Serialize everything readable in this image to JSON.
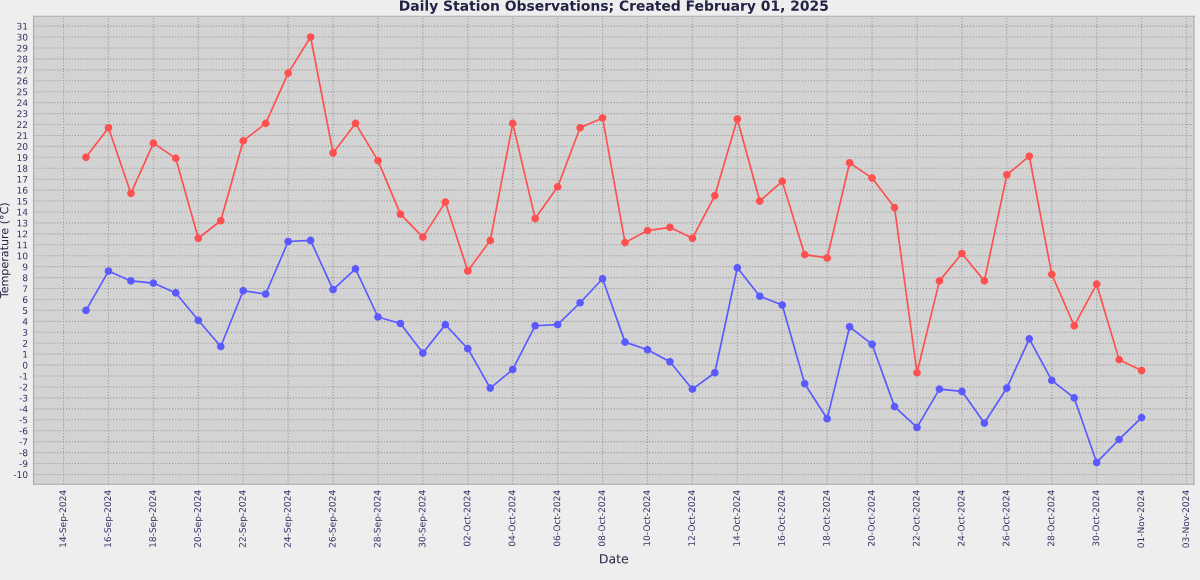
{
  "chart_data": {
    "type": "line",
    "title": "Daily Station Observations; Created February 01, 2025",
    "xlabel": "Date",
    "ylabel": "Temperature (°C)",
    "x": [
      "2024-09-15",
      "2024-09-16",
      "2024-09-17",
      "2024-09-18",
      "2024-09-19",
      "2024-09-20",
      "2024-09-21",
      "2024-09-22",
      "2024-09-23",
      "2024-09-24",
      "2024-09-25",
      "2024-09-26",
      "2024-09-27",
      "2024-09-28",
      "2024-09-29",
      "2024-09-30",
      "2024-10-01",
      "2024-10-02",
      "2024-10-03",
      "2024-10-04",
      "2024-10-05",
      "2024-10-06",
      "2024-10-07",
      "2024-10-08",
      "2024-10-09",
      "2024-10-10",
      "2024-10-11",
      "2024-10-12",
      "2024-10-13",
      "2024-10-14",
      "2024-10-15",
      "2024-10-16",
      "2024-10-17",
      "2024-10-18",
      "2024-10-19",
      "2024-10-20",
      "2024-10-21",
      "2024-10-22",
      "2024-10-23",
      "2024-10-24",
      "2024-10-25",
      "2024-10-26",
      "2024-10-27",
      "2024-10-28",
      "2024-10-29",
      "2024-10-30",
      "2024-10-31",
      "2024-11-01"
    ],
    "series": [
      {
        "color": "#ff5050",
        "values": [
          19.0,
          21.7,
          15.7,
          20.3,
          18.9,
          11.6,
          13.2,
          20.5,
          22.1,
          26.7,
          30.0,
          19.4,
          22.1,
          18.7,
          13.8,
          11.7,
          14.9,
          8.6,
          11.4,
          22.1,
          13.4,
          16.3,
          21.7,
          22.6,
          11.2,
          12.3,
          12.6,
          11.6,
          15.5,
          22.5,
          15.0,
          16.8,
          10.1,
          9.8,
          18.5,
          17.1,
          14.4,
          -0.7,
          7.7,
          10.2,
          7.7,
          17.4,
          19.1,
          8.3,
          3.6,
          7.4,
          0.5,
          -0.5
        ]
      },
      {
        "color": "#5a5aff",
        "values": [
          5.0,
          8.6,
          7.7,
          7.5,
          6.6,
          4.1,
          1.7,
          6.8,
          6.5,
          11.3,
          11.4,
          6.9,
          8.8,
          4.4,
          3.8,
          1.1,
          3.7,
          1.5,
          -2.1,
          -0.4,
          3.6,
          3.7,
          5.7,
          7.9,
          2.1,
          1.4,
          0.3,
          -2.2,
          -0.7,
          8.9,
          6.3,
          5.5,
          -1.7,
          -4.9,
          3.5,
          1.9,
          -3.8,
          -5.7,
          -2.2,
          -2.4,
          -5.3,
          -2.1,
          2.4,
          -1.4,
          -3.0,
          -8.9,
          -6.8,
          -4.8
        ]
      }
    ],
    "xlim": [
      "2024-09-12T16:00",
      "2024-11-03T08:00"
    ],
    "xticks": [
      {
        "value": "2024-09-14",
        "label": "14-Sep-2024"
      },
      {
        "value": "2024-09-16",
        "label": "16-Sep-2024"
      },
      {
        "value": "2024-09-18",
        "label": "18-Sep-2024"
      },
      {
        "value": "2024-09-20",
        "label": "20-Sep-2024"
      },
      {
        "value": "2024-09-22",
        "label": "22-Sep-2024"
      },
      {
        "value": "2024-09-24",
        "label": "24-Sep-2024"
      },
      {
        "value": "2024-09-26",
        "label": "26-Sep-2024"
      },
      {
        "value": "2024-09-28",
        "label": "28-Sep-2024"
      },
      {
        "value": "2024-09-30",
        "label": "30-Sep-2024"
      },
      {
        "value": "2024-10-02",
        "label": "02-Oct-2024"
      },
      {
        "value": "2024-10-04",
        "label": "04-Oct-2024"
      },
      {
        "value": "2024-10-06",
        "label": "06-Oct-2024"
      },
      {
        "value": "2024-10-08",
        "label": "08-Oct-2024"
      },
      {
        "value": "2024-10-10",
        "label": "10-Oct-2024"
      },
      {
        "value": "2024-10-12",
        "label": "12-Oct-2024"
      },
      {
        "value": "2024-10-14",
        "label": "14-Oct-2024"
      },
      {
        "value": "2024-10-16",
        "label": "16-Oct-2024"
      },
      {
        "value": "2024-10-18",
        "label": "18-Oct-2024"
      },
      {
        "value": "2024-10-20",
        "label": "20-Oct-2024"
      },
      {
        "value": "2024-10-22",
        "label": "22-Oct-2024"
      },
      {
        "value": "2024-10-24",
        "label": "24-Oct-2024"
      },
      {
        "value": "2024-10-26",
        "label": "26-Oct-2024"
      },
      {
        "value": "2024-10-28",
        "label": "28-Oct-2024"
      },
      {
        "value": "2024-10-30",
        "label": "30-Oct-2024"
      },
      {
        "value": "2024-11-01",
        "label": "01-Nov-2024"
      },
      {
        "value": "2024-11-03",
        "label": "03-Nov-2024"
      }
    ],
    "ylim": [
      -10.9,
      31.9
    ],
    "yticks": [
      -10,
      -9,
      -8,
      -7,
      -6,
      -5,
      -4,
      -3,
      -2,
      -1,
      0,
      1,
      2,
      3,
      4,
      5,
      6,
      7,
      8,
      9,
      10,
      11,
      12,
      13,
      14,
      15,
      16,
      17,
      18,
      19,
      20,
      21,
      22,
      23,
      24,
      25,
      26,
      27,
      28,
      29,
      30,
      31
    ],
    "grid": true,
    "marker": "circle",
    "line_style": "solid",
    "legend": false
  }
}
